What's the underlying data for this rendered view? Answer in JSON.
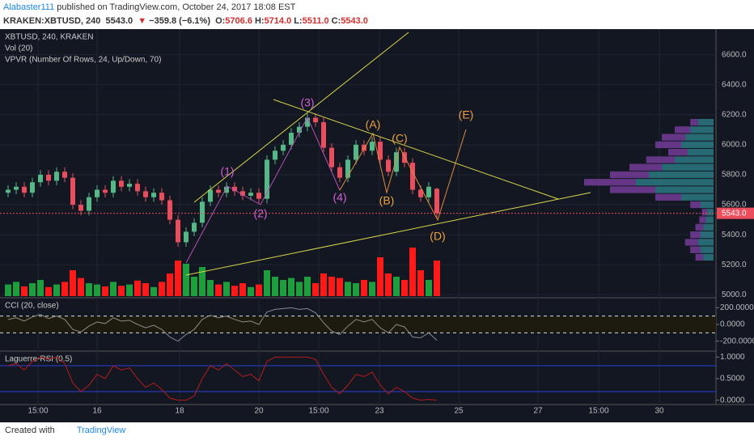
{
  "header": {
    "author": "Alabaster111",
    "published": "published on TradingView.com, October 24, 2017 18:08 EST",
    "symbol": "KRAKEN:XBTUSD, 240",
    "last": "5543.0",
    "arrow": "▼",
    "change": "−359.8 (−6.1%)",
    "ohlc": [
      {
        "label": "O:",
        "value": "5706.6"
      },
      {
        "label": "H:",
        "value": "5714.0"
      },
      {
        "label": "L:",
        "value": "5511.0"
      },
      {
        "label": "C:",
        "value": "5543.0"
      }
    ]
  },
  "footer": {
    "created": "Created with",
    "brand": "TradingView"
  },
  "chart_data": {
    "type": "candlestick",
    "title": "XBTUSD, 240, KRAKEN",
    "vol_title": "Vol (20)",
    "vpvr_title": "VPVR (Number Of Rows, 24, Up/Down, 70)",
    "up_color": "#53b987",
    "down_color": "#eb4d5c",
    "open": [
      5680,
      5700,
      5720,
      5680,
      5750,
      5800,
      5760,
      5820,
      5780,
      5600,
      5560,
      5650,
      5700,
      5680,
      5760,
      5720,
      5740,
      5690,
      5650,
      5680,
      5630,
      5500,
      5350,
      5420,
      5480,
      5620,
      5700,
      5680,
      5720,
      5690,
      5660,
      5680,
      5640,
      5900,
      5960,
      6000,
      6080,
      6120,
      6180,
      6150,
      5980,
      5850,
      5780,
      5900,
      6000,
      5960,
      6020,
      5900,
      5820,
      5950,
      5880,
      5700,
      5650,
      5706.6
    ],
    "high": [
      5730,
      5750,
      5750,
      5780,
      5830,
      5830,
      5850,
      5850,
      5810,
      5630,
      5680,
      5730,
      5730,
      5790,
      5790,
      5770,
      5770,
      5720,
      5710,
      5710,
      5660,
      5530,
      5450,
      5510,
      5650,
      5730,
      5730,
      5750,
      5750,
      5720,
      5710,
      5710,
      5930,
      5990,
      6030,
      6110,
      6150,
      6210,
      6210,
      6180,
      6010,
      5880,
      5930,
      6030,
      6030,
      6050,
      6050,
      5930,
      5980,
      5980,
      5910,
      5730,
      5750,
      5714
    ],
    "low": [
      5650,
      5670,
      5650,
      5650,
      5720,
      5730,
      5730,
      5750,
      5570,
      5530,
      5530,
      5620,
      5650,
      5650,
      5690,
      5690,
      5660,
      5620,
      5620,
      5600,
      5470,
      5320,
      5320,
      5390,
      5450,
      5590,
      5650,
      5650,
      5660,
      5630,
      5630,
      5610,
      5610,
      5870,
      5930,
      5970,
      6050,
      6090,
      6120,
      5950,
      5820,
      5750,
      5750,
      5870,
      5930,
      5930,
      5870,
      5790,
      5790,
      5850,
      5670,
      5620,
      5620,
      5511
    ],
    "close": [
      5700,
      5720,
      5680,
      5750,
      5800,
      5760,
      5820,
      5780,
      5600,
      5560,
      5650,
      5700,
      5680,
      5760,
      5720,
      5740,
      5690,
      5650,
      5680,
      5630,
      5500,
      5350,
      5420,
      5480,
      5620,
      5700,
      5680,
      5720,
      5690,
      5660,
      5680,
      5640,
      5900,
      5960,
      6000,
      6080,
      6120,
      6180,
      6150,
      5980,
      5850,
      5780,
      5900,
      6000,
      5960,
      6020,
      5900,
      5820,
      5950,
      5880,
      5700,
      5650,
      5720,
      5543
    ],
    "last_label": "5543.0",
    "ylim": [
      4980,
      6760
    ],
    "yticks": [
      {
        "value": 5000,
        "label": "5000.0"
      },
      {
        "value": 5200,
        "label": "5200.0"
      },
      {
        "value": 5400,
        "label": "5400.0"
      },
      {
        "value": 5600,
        "label": "5600.0"
      },
      {
        "value": 5800,
        "label": "5800.0"
      },
      {
        "value": 6000,
        "label": "6000.0"
      },
      {
        "value": 6200,
        "label": "6200.0"
      },
      {
        "value": 6400,
        "label": "6400.0"
      },
      {
        "value": 6600,
        "label": "6600.0"
      }
    ],
    "xticks": [
      "15:00",
      "16",
      "18",
      "20",
      "15:00",
      "23",
      "25",
      "27",
      "15:00",
      "30"
    ],
    "volume": [
      18,
      22,
      15,
      20,
      25,
      14,
      18,
      22,
      40,
      28,
      20,
      18,
      15,
      22,
      16,
      18,
      24,
      20,
      14,
      22,
      35,
      55,
      50,
      30,
      45,
      25,
      18,
      22,
      16,
      20,
      14,
      18,
      40,
      30,
      25,
      28,
      22,
      30,
      20,
      35,
      30,
      28,
      22,
      20,
      25,
      22,
      60,
      35,
      30,
      25,
      75,
      40,
      25,
      55
    ],
    "vol_up_color": "#1e9e3c",
    "vol_down_color": "#ff1a1a",
    "vlim": [
      0,
      100
    ],
    "vpvr": {
      "prices": [
        5250,
        5300,
        5350,
        5400,
        5450,
        5500,
        5550,
        5600,
        5650,
        5700,
        5750,
        5800,
        5850,
        5900,
        5950,
        6000,
        6050,
        6100,
        6150
      ],
      "up": [
        8,
        10,
        12,
        10,
        8,
        6,
        5,
        10,
        25,
        45,
        60,
        50,
        40,
        30,
        20,
        25,
        22,
        18,
        12
      ],
      "down": [
        6,
        8,
        10,
        8,
        6,
        5,
        4,
        8,
        20,
        35,
        40,
        30,
        25,
        22,
        15,
        20,
        18,
        12,
        6
      ],
      "up_color": "#2e7f8a",
      "down_color": "#7b3fa0"
    },
    "annotations": [
      "(1)",
      "(2)",
      "(3)",
      "(4)",
      "(A)",
      "(B)",
      "(C)",
      "(D)",
      "(E)"
    ],
    "cci": {
      "title": "CCI (20, close)",
      "values": [
        60,
        80,
        40,
        90,
        120,
        70,
        100,
        60,
        -60,
        -90,
        -20,
        30,
        10,
        80,
        40,
        50,
        0,
        -40,
        -10,
        -60,
        -150,
        -200,
        -120,
        -60,
        60,
        110,
        80,
        100,
        60,
        30,
        40,
        0,
        150,
        180,
        190,
        200,
        180,
        190,
        140,
        20,
        -80,
        -120,
        -20,
        60,
        30,
        60,
        -40,
        -100,
        0,
        -30,
        -150,
        -160,
        -100,
        -190
      ],
      "ylim": [
        -300,
        300
      ],
      "bands": [
        100,
        -100
      ],
      "color": "#8a8a8a",
      "yticks": [
        {
          "value": 200,
          "label": "200.0000"
        },
        {
          "value": 0,
          "label": "0.0000"
        },
        {
          "value": -200,
          "label": "-200.0000"
        }
      ]
    },
    "laguerre": {
      "title": "Laguerre-RSI (0.5)",
      "values": [
        0.8,
        0.85,
        0.7,
        0.9,
        1,
        0.95,
        1,
        0.85,
        0.4,
        0.2,
        0.35,
        0.6,
        0.5,
        0.8,
        0.7,
        0.75,
        0.5,
        0.3,
        0.4,
        0.25,
        0.05,
        0,
        0,
        0.1,
        0.5,
        0.8,
        0.7,
        0.85,
        0.7,
        0.55,
        0.6,
        0.45,
        0.9,
        1,
        1,
        1,
        1,
        1,
        0.95,
        0.6,
        0.3,
        0.15,
        0.35,
        0.6,
        0.55,
        0.65,
        0.35,
        0.15,
        0.3,
        0.2,
        0.05,
        0,
        0.02,
        0
      ],
      "ylim": [
        -0.1,
        1.1
      ],
      "levels": [
        0.8,
        0.2
      ],
      "color": "#b71c1c",
      "yticks": [
        {
          "value": 1,
          "label": "1.0000"
        },
        {
          "value": 0.5,
          "label": "0.5000"
        },
        {
          "value": 0,
          "label": "0.0000"
        }
      ]
    }
  }
}
